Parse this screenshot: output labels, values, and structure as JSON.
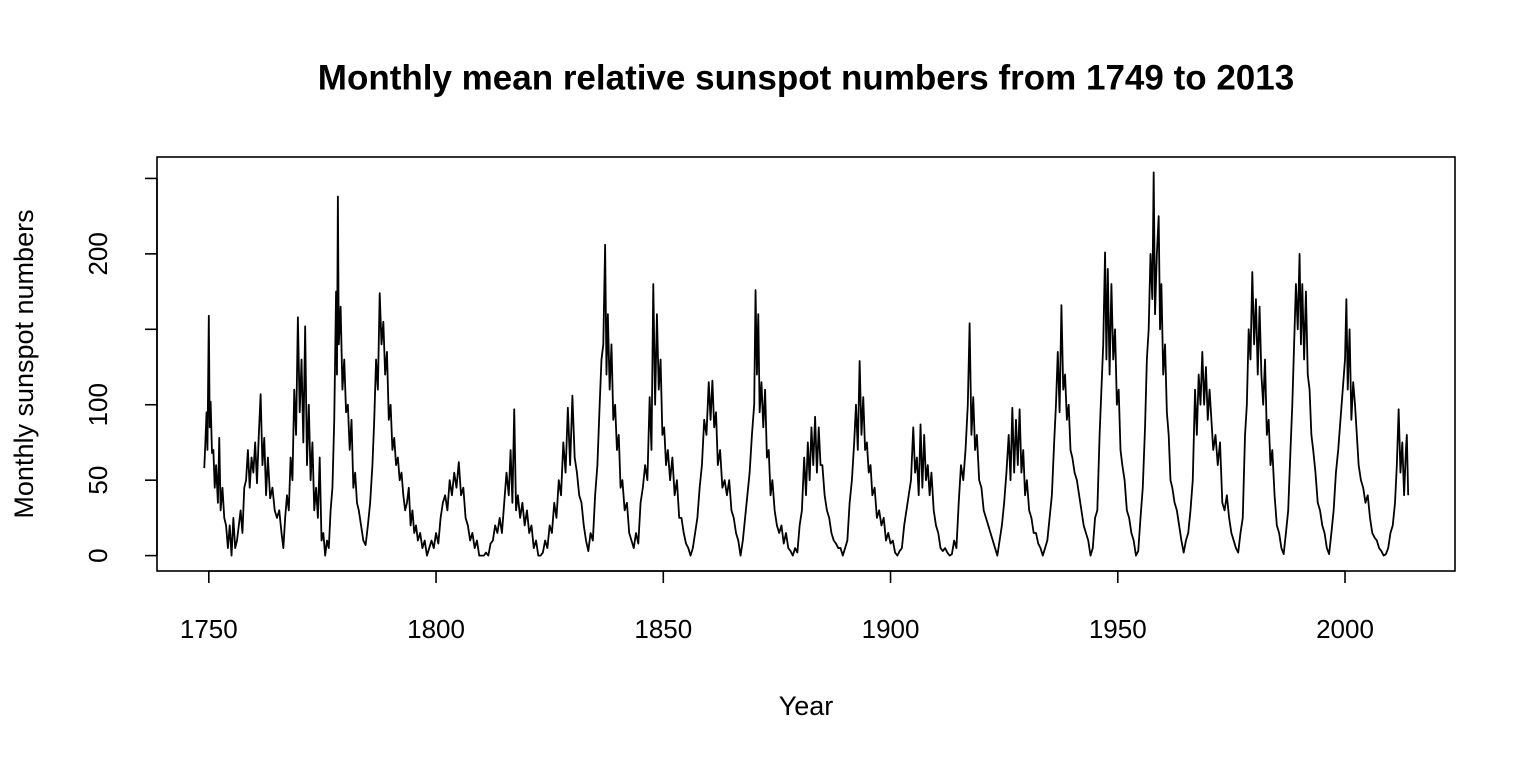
{
  "chart_data": {
    "type": "line",
    "title": "Monthly mean relative sunspot numbers from 1749 to 2013",
    "x_label": "Year",
    "y_label": "Monthly sunspot numbers",
    "color": "#000000",
    "xlim": [
      1738.6,
      2024.2
    ],
    "ylim": [
      -10.2,
      264.2
    ],
    "xticks": [
      1750,
      1800,
      1850,
      1900,
      1950,
      2000
    ],
    "yticks": [
      0,
      50,
      100,
      {
        "value": 150,
        "label": null
      },
      200,
      {
        "value": 250,
        "label": null
      }
    ],
    "x": [
      1749.0,
      1749.2,
      1749.5,
      1749.7,
      1750.0,
      1750.2,
      1750.4,
      1750.7,
      1751.0,
      1751.3,
      1751.6,
      1752.0,
      1752.3,
      1752.6,
      1753.0,
      1753.4,
      1753.8,
      1754.2,
      1754.6,
      1755.0,
      1755.4,
      1755.8,
      1756.2,
      1756.6,
      1757.0,
      1757.4,
      1757.8,
      1758.2,
      1758.6,
      1759.0,
      1759.4,
      1759.8,
      1760.2,
      1760.6,
      1761.0,
      1761.4,
      1761.8,
      1762.2,
      1762.6,
      1763.0,
      1763.5,
      1764.0,
      1764.5,
      1765.0,
      1765.5,
      1766.0,
      1766.4,
      1766.8,
      1767.2,
      1767.6,
      1768.0,
      1768.4,
      1768.8,
      1769.2,
      1769.6,
      1770.0,
      1770.4,
      1770.8,
      1771.2,
      1771.6,
      1772.0,
      1772.4,
      1772.8,
      1773.2,
      1773.6,
      1774.0,
      1774.4,
      1774.8,
      1775.2,
      1775.6,
      1776.0,
      1776.4,
      1776.8,
      1777.2,
      1777.6,
      1778.0,
      1778.2,
      1778.4,
      1778.6,
      1779.0,
      1779.4,
      1779.8,
      1780.2,
      1780.6,
      1781.0,
      1781.4,
      1781.8,
      1782.2,
      1782.6,
      1783.0,
      1783.5,
      1784.0,
      1784.5,
      1785.0,
      1785.5,
      1786.0,
      1786.4,
      1786.8,
      1787.2,
      1787.6,
      1788.0,
      1788.4,
      1788.8,
      1789.2,
      1789.6,
      1790.0,
      1790.4,
      1790.8,
      1791.2,
      1791.6,
      1792.0,
      1792.4,
      1792.8,
      1793.2,
      1793.6,
      1794.0,
      1794.4,
      1794.8,
      1795.2,
      1795.6,
      1796.0,
      1796.5,
      1797.0,
      1797.5,
      1798.0,
      1798.5,
      1799.0,
      1799.5,
      1800.0,
      1800.5,
      1801.0,
      1801.5,
      1802.0,
      1802.5,
      1803.0,
      1803.5,
      1804.0,
      1804.5,
      1805.0,
      1805.5,
      1806.0,
      1806.5,
      1807.0,
      1807.5,
      1808.0,
      1808.5,
      1809.0,
      1809.5,
      1810.0,
      1810.5,
      1811.0,
      1811.5,
      1812.0,
      1812.5,
      1813.0,
      1813.5,
      1814.0,
      1814.5,
      1815.0,
      1815.5,
      1816.0,
      1816.4,
      1816.8,
      1817.2,
      1817.6,
      1818.0,
      1818.5,
      1819.0,
      1819.5,
      1820.0,
      1820.5,
      1821.0,
      1821.5,
      1822.0,
      1822.5,
      1823.0,
      1823.5,
      1824.0,
      1824.5,
      1825.0,
      1825.5,
      1826.0,
      1826.5,
      1827.0,
      1827.5,
      1828.0,
      1828.5,
      1829.0,
      1829.5,
      1830.0,
      1830.5,
      1831.0,
      1831.5,
      1832.0,
      1832.5,
      1833.0,
      1833.5,
      1834.0,
      1834.5,
      1835.0,
      1835.5,
      1836.0,
      1836.4,
      1836.8,
      1837.2,
      1837.5,
      1837.8,
      1838.2,
      1838.6,
      1839.0,
      1839.4,
      1839.8,
      1840.2,
      1840.6,
      1841.0,
      1841.5,
      1842.0,
      1842.5,
      1843.0,
      1843.5,
      1844.0,
      1844.5,
      1845.0,
      1845.5,
      1846.0,
      1846.5,
      1847.0,
      1847.4,
      1847.8,
      1848.2,
      1848.6,
      1849.0,
      1849.4,
      1849.8,
      1850.2,
      1850.6,
      1851.0,
      1851.5,
      1852.0,
      1852.5,
      1853.0,
      1853.5,
      1854.0,
      1854.5,
      1855.0,
      1855.5,
      1856.0,
      1856.5,
      1857.0,
      1857.5,
      1858.0,
      1858.5,
      1859.0,
      1859.5,
      1860.0,
      1860.4,
      1860.8,
      1861.2,
      1861.6,
      1862.0,
      1862.5,
      1863.0,
      1863.5,
      1864.0,
      1864.5,
      1865.0,
      1865.5,
      1866.0,
      1866.5,
      1867.0,
      1867.5,
      1868.0,
      1868.5,
      1869.0,
      1869.5,
      1870.0,
      1870.3,
      1870.6,
      1870.9,
      1871.2,
      1871.6,
      1872.0,
      1872.4,
      1872.8,
      1873.2,
      1873.6,
      1874.0,
      1874.5,
      1875.0,
      1875.5,
      1876.0,
      1876.5,
      1877.0,
      1877.5,
      1878.0,
      1878.5,
      1879.0,
      1879.5,
      1880.0,
      1880.5,
      1881.0,
      1881.4,
      1881.8,
      1882.2,
      1882.6,
      1883.0,
      1883.4,
      1883.8,
      1884.2,
      1884.6,
      1885.0,
      1885.5,
      1886.0,
      1886.5,
      1887.0,
      1887.5,
      1888.0,
      1888.5,
      1889.0,
      1889.5,
      1890.0,
      1890.5,
      1891.0,
      1891.5,
      1892.0,
      1892.4,
      1892.8,
      1893.2,
      1893.6,
      1894.0,
      1894.4,
      1894.8,
      1895.2,
      1895.6,
      1896.0,
      1896.5,
      1897.0,
      1897.5,
      1898.0,
      1898.5,
      1899.0,
      1899.5,
      1900.0,
      1900.5,
      1901.0,
      1901.5,
      1902.0,
      1902.5,
      1903.0,
      1903.5,
      1904.0,
      1904.5,
      1905.0,
      1905.4,
      1905.8,
      1906.2,
      1906.6,
      1907.0,
      1907.4,
      1907.8,
      1908.2,
      1908.6,
      1909.0,
      1909.5,
      1910.0,
      1910.5,
      1911.0,
      1911.5,
      1912.0,
      1912.5,
      1913.0,
      1913.5,
      1914.0,
      1914.5,
      1915.0,
      1915.5,
      1916.0,
      1916.5,
      1917.0,
      1917.4,
      1917.8,
      1918.2,
      1918.6,
      1919.0,
      1919.5,
      1920.0,
      1920.5,
      1921.0,
      1921.5,
      1922.0,
      1922.5,
      1923.0,
      1923.5,
      1924.0,
      1924.5,
      1925.0,
      1925.5,
      1926.0,
      1926.4,
      1926.8,
      1927.2,
      1927.6,
      1928.0,
      1928.4,
      1928.8,
      1929.2,
      1929.6,
      1930.0,
      1930.5,
      1931.0,
      1931.5,
      1932.0,
      1932.5,
      1933.0,
      1933.5,
      1934.0,
      1934.5,
      1935.0,
      1935.5,
      1936.0,
      1936.4,
      1936.8,
      1937.2,
      1937.6,
      1938.0,
      1938.4,
      1938.8,
      1939.2,
      1939.6,
      1940.0,
      1940.5,
      1941.0,
      1941.5,
      1942.0,
      1942.5,
      1943.0,
      1943.5,
      1944.0,
      1944.5,
      1945.0,
      1945.5,
      1946.0,
      1946.4,
      1946.8,
      1947.2,
      1947.5,
      1947.8,
      1948.2,
      1948.6,
      1949.0,
      1949.4,
      1949.8,
      1950.2,
      1950.6,
      1951.0,
      1951.5,
      1952.0,
      1952.5,
      1953.0,
      1953.5,
      1954.0,
      1954.5,
      1955.0,
      1955.5,
      1956.0,
      1956.4,
      1956.8,
      1957.2,
      1957.6,
      1957.9,
      1958.2,
      1958.6,
      1959.0,
      1959.3,
      1959.6,
      1960.0,
      1960.4,
      1960.8,
      1961.2,
      1961.6,
      1962.0,
      1962.5,
      1963.0,
      1963.5,
      1964.0,
      1964.5,
      1965.0,
      1965.5,
      1966.0,
      1966.5,
      1967.0,
      1967.4,
      1967.8,
      1968.2,
      1968.6,
      1969.0,
      1969.4,
      1969.8,
      1970.2,
      1970.6,
      1971.0,
      1971.5,
      1972.0,
      1972.5,
      1973.0,
      1973.5,
      1974.0,
      1974.5,
      1975.0,
      1975.5,
      1976.0,
      1976.5,
      1977.0,
      1977.5,
      1978.0,
      1978.4,
      1978.8,
      1979.2,
      1979.6,
      1980.0,
      1980.4,
      1980.8,
      1981.2,
      1981.6,
      1982.0,
      1982.4,
      1982.8,
      1983.2,
      1983.6,
      1984.0,
      1984.5,
      1985.0,
      1985.5,
      1986.0,
      1986.5,
      1987.0,
      1987.5,
      1988.0,
      1988.4,
      1988.8,
      1989.2,
      1989.6,
      1990.0,
      1990.3,
      1990.6,
      1991.0,
      1991.4,
      1991.8,
      1992.2,
      1992.6,
      1993.0,
      1993.5,
      1994.0,
      1994.5,
      1995.0,
      1995.5,
      1996.0,
      1996.5,
      1997.0,
      1997.5,
      1998.0,
      1998.5,
      1999.0,
      1999.5,
      2000.0,
      2000.3,
      2000.6,
      2001.0,
      2001.4,
      2001.8,
      2002.2,
      2002.6,
      2003.0,
      2003.5,
      2004.0,
      2004.5,
      2005.0,
      2005.5,
      2006.0,
      2006.5,
      2007.0,
      2007.5,
      2008.0,
      2008.5,
      2009.0,
      2009.5,
      2010.0,
      2010.5,
      2011.0,
      2011.4,
      2011.8,
      2012.2,
      2012.6,
      2013.0,
      2013.4,
      2013.6,
      2013.9
    ],
    "values": [
      58,
      72,
      95,
      70,
      159,
      85,
      102,
      68,
      70,
      45,
      60,
      35,
      78,
      30,
      45,
      25,
      20,
      5,
      20,
      0,
      25,
      5,
      10,
      20,
      30,
      15,
      45,
      50,
      70,
      45,
      65,
      55,
      75,
      48,
      80,
      107,
      60,
      78,
      40,
      65,
      38,
      45,
      30,
      25,
      30,
      15,
      5,
      25,
      40,
      30,
      65,
      50,
      110,
      80,
      158,
      95,
      130,
      75,
      152,
      60,
      100,
      50,
      75,
      30,
      45,
      25,
      65,
      10,
      15,
      0,
      10,
      5,
      30,
      45,
      90,
      175,
      120,
      238,
      140,
      165,
      110,
      130,
      95,
      100,
      70,
      90,
      45,
      55,
      35,
      30,
      20,
      10,
      7,
      20,
      35,
      60,
      90,
      130,
      110,
      174,
      140,
      155,
      120,
      135,
      90,
      100,
      70,
      78,
      60,
      65,
      50,
      55,
      40,
      30,
      35,
      45,
      20,
      30,
      15,
      20,
      10,
      15,
      5,
      10,
      0,
      5,
      10,
      5,
      15,
      8,
      25,
      35,
      40,
      30,
      50,
      40,
      55,
      45,
      62,
      40,
      45,
      25,
      20,
      10,
      15,
      5,
      10,
      0,
      0,
      0,
      2,
      0,
      8,
      10,
      20,
      15,
      25,
      15,
      35,
      55,
      40,
      70,
      35,
      97,
      30,
      40,
      25,
      35,
      20,
      30,
      15,
      20,
      5,
      10,
      0,
      0,
      2,
      10,
      5,
      20,
      15,
      35,
      25,
      50,
      40,
      75,
      55,
      98,
      60,
      106,
      65,
      55,
      40,
      35,
      20,
      10,
      3,
      15,
      10,
      40,
      60,
      100,
      130,
      140,
      206,
      120,
      160,
      110,
      140,
      90,
      100,
      70,
      80,
      45,
      50,
      30,
      35,
      15,
      10,
      5,
      15,
      8,
      35,
      45,
      60,
      50,
      105,
      70,
      180,
      100,
      160,
      110,
      130,
      80,
      85,
      60,
      70,
      50,
      65,
      40,
      50,
      25,
      25,
      15,
      8,
      5,
      0,
      5,
      15,
      25,
      45,
      60,
      90,
      80,
      115,
      90,
      116,
      85,
      95,
      60,
      70,
      45,
      50,
      40,
      50,
      30,
      25,
      15,
      10,
      0,
      10,
      25,
      40,
      55,
      80,
      100,
      176,
      120,
      160,
      95,
      115,
      85,
      110,
      65,
      70,
      40,
      50,
      30,
      20,
      15,
      20,
      8,
      15,
      5,
      3,
      0,
      5,
      2,
      20,
      30,
      65,
      40,
      75,
      50,
      85,
      60,
      92,
      55,
      85,
      60,
      60,
      40,
      30,
      25,
      15,
      10,
      8,
      5,
      5,
      0,
      5,
      10,
      35,
      50,
      75,
      100,
      70,
      129,
      80,
      105,
      70,
      75,
      55,
      60,
      40,
      45,
      25,
      30,
      20,
      25,
      10,
      15,
      8,
      10,
      2,
      0,
      3,
      5,
      20,
      30,
      40,
      50,
      85,
      55,
      65,
      40,
      87,
      45,
      80,
      50,
      60,
      40,
      55,
      30,
      20,
      15,
      5,
      3,
      5,
      2,
      0,
      1,
      10,
      5,
      35,
      60,
      50,
      70,
      100,
      154,
      80,
      105,
      70,
      80,
      50,
      45,
      30,
      25,
      20,
      15,
      10,
      5,
      0,
      10,
      20,
      35,
      55,
      80,
      50,
      98,
      55,
      90,
      60,
      97,
      55,
      70,
      40,
      50,
      30,
      25,
      15,
      15,
      8,
      5,
      0,
      5,
      10,
      25,
      40,
      75,
      100,
      135,
      95,
      166,
      110,
      120,
      90,
      100,
      70,
      65,
      55,
      50,
      40,
      30,
      20,
      15,
      10,
      0,
      5,
      25,
      30,
      80,
      110,
      140,
      201,
      130,
      190,
      120,
      180,
      130,
      150,
      100,
      110,
      70,
      60,
      50,
      30,
      25,
      15,
      10,
      0,
      3,
      25,
      45,
      85,
      130,
      150,
      200,
      170,
      254,
      160,
      200,
      225,
      150,
      180,
      120,
      140,
      95,
      80,
      50,
      45,
      35,
      30,
      20,
      10,
      2,
      10,
      15,
      30,
      50,
      110,
      80,
      120,
      100,
      135,
      100,
      125,
      90,
      110,
      90,
      70,
      80,
      60,
      75,
      35,
      30,
      40,
      25,
      15,
      10,
      5,
      2,
      15,
      25,
      80,
      100,
      150,
      130,
      188,
      140,
      170,
      120,
      165,
      120,
      100,
      130,
      80,
      90,
      60,
      70,
      40,
      20,
      15,
      5,
      1,
      15,
      30,
      70,
      100,
      140,
      180,
      150,
      200,
      140,
      180,
      130,
      175,
      120,
      110,
      80,
      70,
      55,
      35,
      30,
      20,
      15,
      5,
      1,
      15,
      30,
      55,
      70,
      90,
      110,
      130,
      170,
      110,
      150,
      90,
      115,
      100,
      80,
      60,
      50,
      45,
      35,
      40,
      25,
      15,
      12,
      10,
      5,
      3,
      0,
      1,
      5,
      15,
      20,
      35,
      60,
      97,
      55,
      75,
      40,
      70,
      80,
      40
    ]
  }
}
